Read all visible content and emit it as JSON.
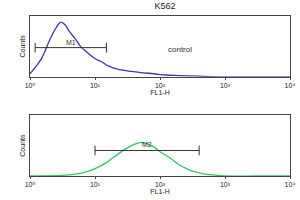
{
  "chart_data": [
    {
      "type": "line",
      "title": "K562",
      "x": [
        1,
        1.5,
        2,
        2.5,
        3,
        3.5,
        4,
        5,
        6,
        8,
        10,
        13,
        16,
        20,
        30,
        50,
        80,
        120,
        200,
        400,
        1000,
        3000,
        10000
      ],
      "values": [
        5,
        30,
        60,
        80,
        90,
        85,
        75,
        62,
        50,
        38,
        30,
        24,
        18,
        14,
        10,
        7,
        5,
        3,
        2,
        1,
        0,
        0,
        0
      ],
      "color": "#3a3aa8",
      "xlim": [
        1,
        10000
      ],
      "xticks": [
        {
          "value": 1,
          "label": "10⁰"
        },
        {
          "value": 10,
          "label": "10¹"
        },
        {
          "value": 100,
          "label": "10²"
        },
        {
          "value": 1000,
          "label": "10³"
        },
        {
          "value": 10000,
          "label": "10⁴"
        }
      ],
      "ylim": [
        0,
        100
      ],
      "log": "x",
      "tick_labels": "x",
      "x_label": "FL1-H",
      "y_label": "Counts",
      "annotations": [
        {
          "text": "control",
          "x": 200,
          "y": 45
        }
      ],
      "gates": [
        {
          "label": "M1",
          "range": [
            1.2,
            15
          ],
          "y": 48
        }
      ]
    },
    {
      "type": "line",
      "x": [
        1,
        3,
        5,
        8,
        10,
        15,
        20,
        30,
        40,
        50,
        60,
        80,
        100,
        150,
        200,
        300,
        500,
        800,
        1000,
        3000,
        10000
      ],
      "values": [
        0,
        1,
        3,
        8,
        12,
        22,
        32,
        45,
        52,
        55,
        54,
        48,
        40,
        28,
        18,
        9,
        3,
        1,
        0,
        0,
        0
      ],
      "color": "#33c466",
      "xlim": [
        1,
        10000
      ],
      "xticks": [
        {
          "value": 1,
          "label": "10⁰"
        },
        {
          "value": 10,
          "label": "10¹"
        },
        {
          "value": 100,
          "label": "10²"
        },
        {
          "value": 1000,
          "label": "10³"
        },
        {
          "value": 10000,
          "label": "10⁴"
        }
      ],
      "ylim": [
        0,
        100
      ],
      "log": "x",
      "tick_labels": "x",
      "x_label": "FL1-H",
      "y_label": "Counts",
      "gates": [
        {
          "label": "M2",
          "range": [
            10,
            400
          ],
          "y": 42
        }
      ]
    }
  ]
}
